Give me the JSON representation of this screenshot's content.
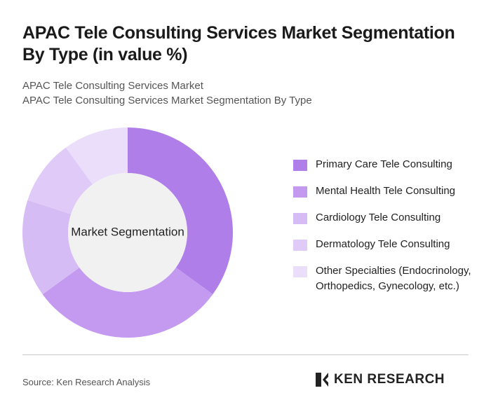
{
  "chart_data": {
    "type": "donut",
    "title": "APAC Tele Consulting Services Market Segmentation By Type (in value %)",
    "subtitles": [
      "APAC Tele Consulting Services Market",
      "APAC Tele Consulting Services Market Segmentation By Type"
    ],
    "center_label": "Market Segmentation",
    "categories": [
      "Primary Care Tele Consulting",
      "Mental Health Tele Consulting",
      "Cardiology Tele Consulting",
      "Dermatology Tele Consulting",
      "Other Specialties (Endocrinology, Orthopedics, Gynecology, etc.)"
    ],
    "values": [
      35,
      30,
      15,
      10,
      10
    ],
    "colors": [
      "#b07ee8",
      "#c39af0",
      "#d6bcf5",
      "#e0caf7",
      "#ebdefa"
    ],
    "source": "Source: Ken Research Analysis",
    "brand": "KEN RESEARCH"
  }
}
